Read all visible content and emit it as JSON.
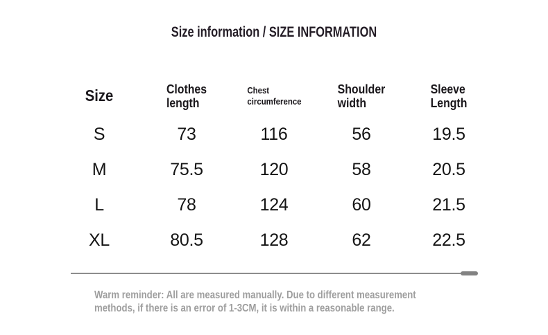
{
  "chart_data": {
    "type": "table",
    "title": "Size information / SIZE INFORMATION",
    "columns": [
      "Size",
      "Clothes length",
      "Chest circumference",
      "Shoulder width",
      "Sleeve Length"
    ],
    "rows": [
      {
        "size": "S",
        "clothes_length": "73",
        "chest_circumference": "116",
        "shoulder_width": "56",
        "sleeve_length": "19.5"
      },
      {
        "size": "M",
        "clothes_length": "75.5",
        "chest_circumference": "120",
        "shoulder_width": "58",
        "sleeve_length": "20.5"
      },
      {
        "size": "L",
        "clothes_length": "78",
        "chest_circumference": "124",
        "shoulder_width": "60",
        "sleeve_length": "21.5"
      },
      {
        "size": "XL",
        "clothes_length": "80.5",
        "chest_circumference": "128",
        "shoulder_width": "62",
        "sleeve_length": "22.5"
      }
    ],
    "note": "Warm reminder: All are measured manually. Due to different measurement methods, if there is an error of 1-3CM, it is within a reasonable range.",
    "note_lines": [
      "Warm reminder: All are measured manually. Due to different measurement",
      "methods, if there is an error of 1-3CM, it is within a reasonable range."
    ],
    "layout": {
      "grid": "off",
      "header_rows": 1,
      "column_alignment": "center"
    }
  },
  "colors": {
    "background": "#ffffff",
    "title_text": "#241d26",
    "header_text": "#1a171b",
    "data_text": "#151515",
    "note_text": "#9e9e9e",
    "divider": "#8d8d8d"
  }
}
